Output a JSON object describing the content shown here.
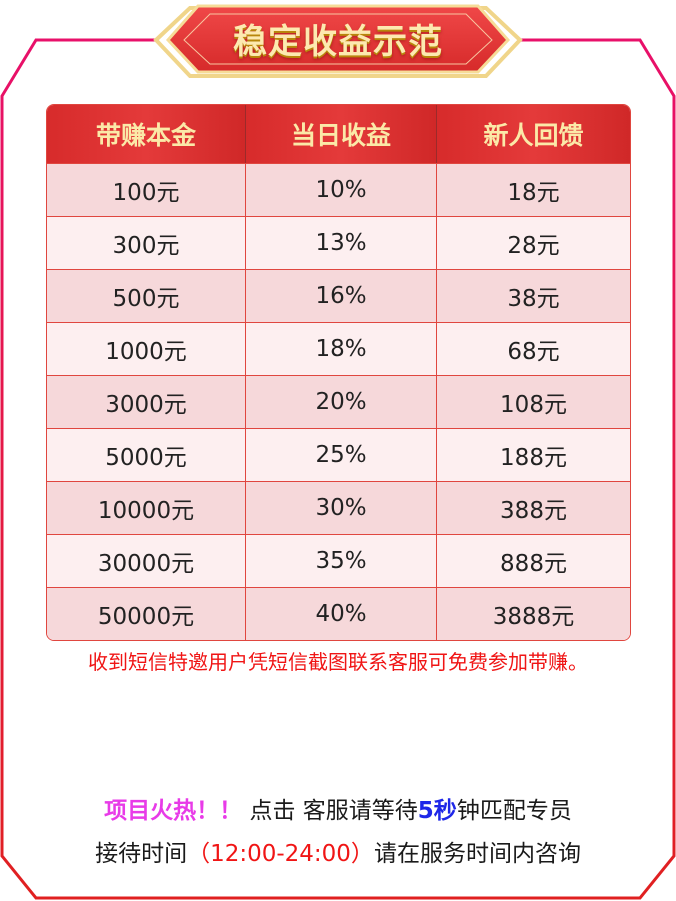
{
  "title": "稳定收益示范",
  "colors": {
    "frame_top": "#e8106a",
    "frame_bottom": "#e02020",
    "header_bg": "#e03535",
    "header_text": "#fbe9a8",
    "notice": "#f01515",
    "hot": "#e83be8",
    "highlight": "#1e27e8"
  },
  "table": {
    "headers": [
      "带赚本金",
      "当日收益",
      "新人回馈"
    ],
    "rows": [
      [
        "100元",
        "10%",
        "18元"
      ],
      [
        "300元",
        "13%",
        "28元"
      ],
      [
        "500元",
        "16%",
        "38元"
      ],
      [
        "1000元",
        "18%",
        "68元"
      ],
      [
        "3000元",
        "20%",
        "108元"
      ],
      [
        "5000元",
        "25%",
        "188元"
      ],
      [
        "10000元",
        "30%",
        "388元"
      ],
      [
        "30000元",
        "35%",
        "888元"
      ],
      [
        "50000元",
        "40%",
        "3888元"
      ]
    ]
  },
  "notice": "收到短信特邀用户凭短信截图联系客服可免费参加带赚。",
  "footer": {
    "hot": "项目火热！！",
    "line1_a": " 点击 客服请等待",
    "line1_highlight": "5秒",
    "line1_b": "钟匹配专员",
    "line2_a": "接待时间",
    "line2_time": "（12:00-24:00）",
    "line2_b": "请在服务时间内咨询"
  }
}
